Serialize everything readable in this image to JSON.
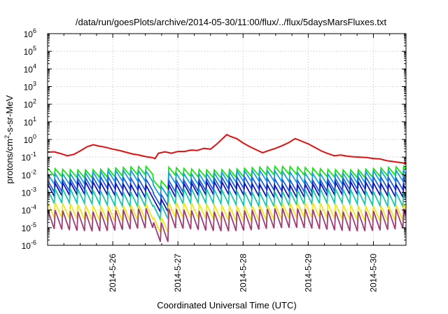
{
  "chart_data": {
    "type": "line",
    "title": "/data/run/goesPlots/archive/2014-05-30/11:00/flux/../flux/5daysMarsFluxes.txt",
    "xlabel": "Coordinated Universal Time (UTC)",
    "ylabel": {
      "prefix": "protons/cm",
      "sup": "2",
      "suffix": "-s-sr-MeV"
    },
    "y_scale": "log",
    "ylim_exp": [
      -6,
      6
    ],
    "y_ticks": [
      {
        "base": "10",
        "exp": "-6"
      },
      {
        "base": "10",
        "exp": "-5"
      },
      {
        "base": "10",
        "exp": "-4"
      },
      {
        "base": "10",
        "exp": "-3"
      },
      {
        "base": "10",
        "exp": "-2"
      },
      {
        "base": "10",
        "exp": "-1"
      },
      {
        "base": "10",
        "exp": "0"
      },
      {
        "base": "10",
        "exp": "1"
      },
      {
        "base": "10",
        "exp": "2"
      },
      {
        "base": "10",
        "exp": "3"
      },
      {
        "base": "10",
        "exp": "4"
      },
      {
        "base": "10",
        "exp": "5"
      },
      {
        "base": "10",
        "exp": "6"
      }
    ],
    "x_range_days": [
      25.0,
      30.5
    ],
    "x_ticks": [
      {
        "label": "2014-5-26",
        "day": 26
      },
      {
        "label": "2014-5-27",
        "day": 27
      },
      {
        "label": "2014-5-28",
        "day": 28
      },
      {
        "label": "2014-5-29",
        "day": 29
      },
      {
        "label": "2014-5-30",
        "day": 30
      }
    ],
    "grid": true,
    "series": [
      {
        "color": "#e11010",
        "points": [
          [
            25.0,
            -0.72
          ],
          [
            25.1,
            -0.7
          ],
          [
            25.2,
            -0.8
          ],
          [
            25.3,
            -0.92
          ],
          [
            25.4,
            -0.85
          ],
          [
            25.5,
            -0.65
          ],
          [
            25.6,
            -0.42
          ],
          [
            25.7,
            -0.3
          ],
          [
            25.8,
            -0.38
          ],
          [
            25.9,
            -0.45
          ],
          [
            26.0,
            -0.55
          ],
          [
            26.1,
            -0.62
          ],
          [
            26.2,
            -0.72
          ],
          [
            26.3,
            -0.82
          ],
          [
            26.4,
            -0.88
          ],
          [
            26.5,
            -0.97
          ],
          [
            26.6,
            -1.02
          ],
          [
            26.65,
            -1.08
          ],
          [
            26.7,
            -0.78
          ],
          [
            26.8,
            -0.7
          ],
          [
            26.9,
            -0.78
          ],
          [
            27.0,
            -0.68
          ],
          [
            27.1,
            -0.68
          ],
          [
            27.2,
            -0.6
          ],
          [
            27.3,
            -0.62
          ],
          [
            27.4,
            -0.5
          ],
          [
            27.5,
            -0.55
          ],
          [
            27.6,
            -0.25
          ],
          [
            27.7,
            0.1
          ],
          [
            27.75,
            0.28
          ],
          [
            27.8,
            0.18
          ],
          [
            27.9,
            0.05
          ],
          [
            28.0,
            -0.2
          ],
          [
            28.1,
            -0.4
          ],
          [
            28.2,
            -0.58
          ],
          [
            28.3,
            -0.75
          ],
          [
            28.4,
            -0.62
          ],
          [
            28.5,
            -0.5
          ],
          [
            28.6,
            -0.35
          ],
          [
            28.7,
            -0.18
          ],
          [
            28.8,
            0.05
          ],
          [
            28.9,
            -0.1
          ],
          [
            29.0,
            -0.25
          ],
          [
            29.1,
            -0.45
          ],
          [
            29.2,
            -0.65
          ],
          [
            29.3,
            -0.8
          ],
          [
            29.4,
            -0.92
          ],
          [
            29.5,
            -0.88
          ],
          [
            29.6,
            -0.95
          ],
          [
            29.7,
            -0.98
          ],
          [
            29.8,
            -1.0
          ],
          [
            29.9,
            -1.02
          ],
          [
            30.0,
            -1.08
          ],
          [
            30.1,
            -1.1
          ],
          [
            30.2,
            -1.2
          ],
          [
            30.3,
            -1.25
          ],
          [
            30.4,
            -1.3
          ],
          [
            30.5,
            -1.35
          ]
        ]
      },
      {
        "color": "#14e614",
        "base": -1.85,
        "amp": 0.45
      },
      {
        "color": "#1aa0dc",
        "base": -2.15,
        "amp": 0.6
      },
      {
        "color": "#1f5fe0",
        "base": -2.55,
        "amp": 0.65
      },
      {
        "color": "#1414b4",
        "base": -2.85,
        "amp": 0.7
      },
      {
        "color": "#18c8a8",
        "base": -3.3,
        "amp": 0.8
      },
      {
        "color": "#f0e61e",
        "base": -4.1,
        "amp": 0.85
      },
      {
        "color": "#a03c78",
        "base": -4.55,
        "amp": 1.1
      }
    ]
  }
}
